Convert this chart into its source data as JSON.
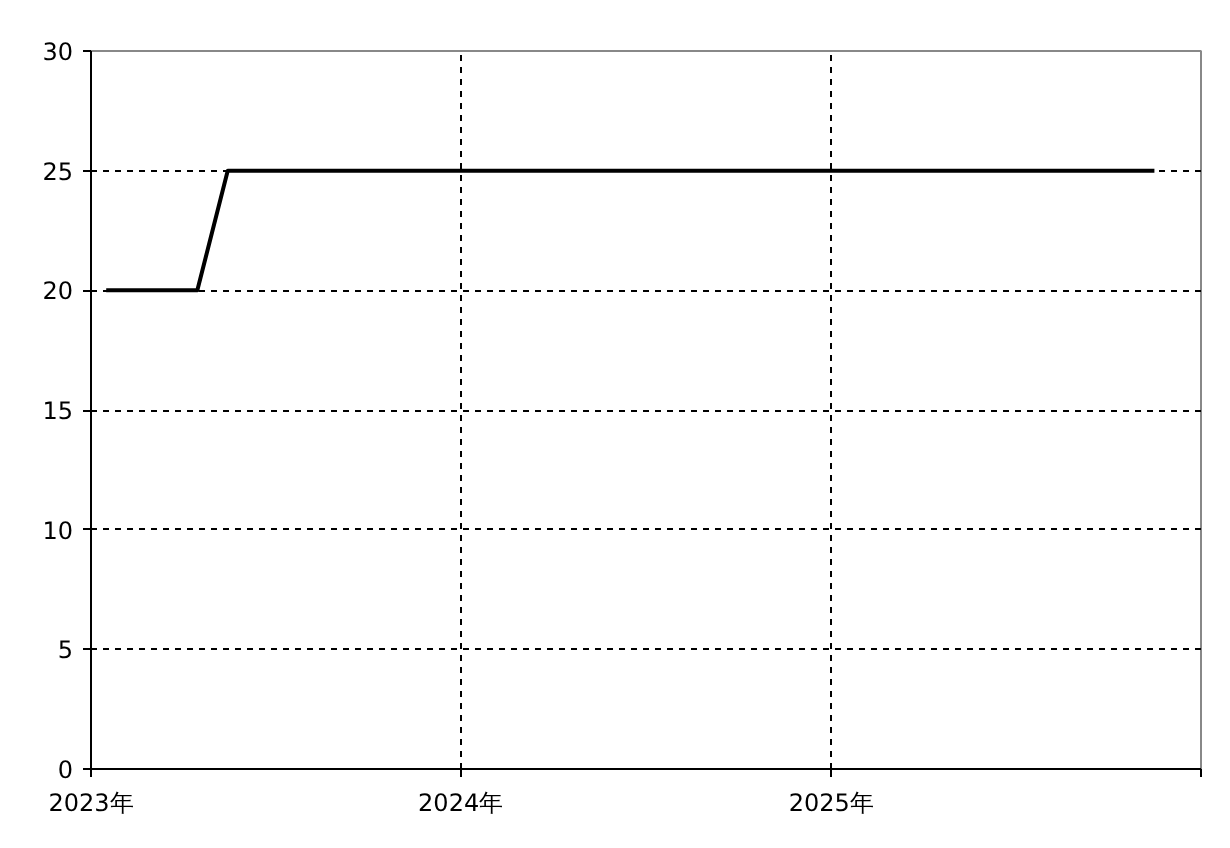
{
  "chart_data": {
    "type": "line",
    "x": [
      "2023-01-16",
      "2023-04-16",
      "2023-05-16",
      "2025-11-16"
    ],
    "series": [
      {
        "color": "#000000",
        "values": [
          20,
          20,
          25,
          25
        ]
      }
    ],
    "xlim": [
      "2023-01-01",
      "2026-01-01"
    ],
    "xticks": [
      {
        "value": "2023-01-01",
        "label": "2023年"
      },
      {
        "value": "2024-01-01",
        "label": "2024年"
      },
      {
        "value": "2025-01-01",
        "label": "2025年"
      },
      {
        "value": "2026-01-01",
        "label": null
      }
    ],
    "ylim": [
      0,
      30
    ],
    "yticks": [
      0,
      5,
      10,
      15,
      20,
      25,
      30
    ],
    "grid": true,
    "line_style": "solid",
    "marker": "none"
  }
}
